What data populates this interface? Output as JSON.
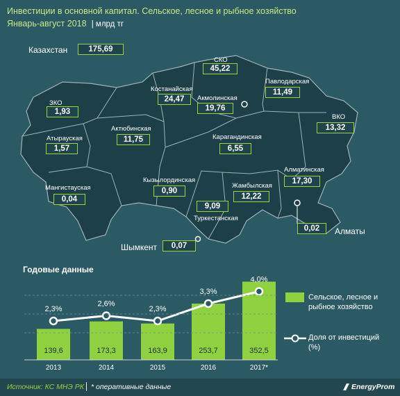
{
  "header": {
    "title": "Инвестиции в основной капитал. Сельское, лесное и рыбное хозяйство",
    "period": "Январь-август 2018",
    "unit": "млрд тг"
  },
  "map": {
    "country_label": "Казахстан",
    "country_value": "175,69",
    "regions": [
      {
        "name": "СКО",
        "value": "45,22"
      },
      {
        "name": "Павлодарская",
        "value": "11,49"
      },
      {
        "name": "Костанайская",
        "value": "24,47"
      },
      {
        "name": "Акмолинская",
        "value": "19,76"
      },
      {
        "name": "ЗКО",
        "value": "1,93"
      },
      {
        "name": "ВКО",
        "value": "13,32"
      },
      {
        "name": "Актюбинская",
        "value": "11,75"
      },
      {
        "name": "Карагандинская",
        "value": "6,55"
      },
      {
        "name": "Атырауская",
        "value": "1,57"
      },
      {
        "name": "Алматинская",
        "value": "17,30"
      },
      {
        "name": "Кызылординская",
        "value": "0,90"
      },
      {
        "name": "Жамбылская",
        "value": "12,22"
      },
      {
        "name": "Мангистауская",
        "value": "0,04"
      },
      {
        "name": "Туркестанская",
        "value": "9,09"
      },
      {
        "name": "Алматы",
        "value": "0,02"
      },
      {
        "name": "Шымкент",
        "value": "0,07"
      }
    ]
  },
  "chart_data": {
    "type": "bar",
    "title": "Годовые данные",
    "categories": [
      "2013",
      "2014",
      "2015",
      "2016",
      "2017*"
    ],
    "series": [
      {
        "name": "Сельское, лесное и рыбное хозяйство",
        "type": "bar",
        "values": [
          139.6,
          173.3,
          163.9,
          253.7,
          352.5
        ],
        "labels": [
          "139,6",
          "173,3",
          "163,9",
          "253,7",
          "352,5"
        ]
      },
      {
        "name": "Доля от инвестиций (%)",
        "type": "line",
        "values": [
          2.3,
          2.6,
          2.3,
          3.3,
          4.0
        ],
        "labels": [
          "2,3%",
          "2,6%",
          "2,3%",
          "3,3%",
          "4,0%"
        ]
      }
    ],
    "colors": {
      "bar": "#8fd13e",
      "line": "#ffffff"
    }
  },
  "footer": {
    "source": "Источник: КС МНЭ РК",
    "note": "* оперативные данные",
    "brand": "EnergyProm"
  }
}
